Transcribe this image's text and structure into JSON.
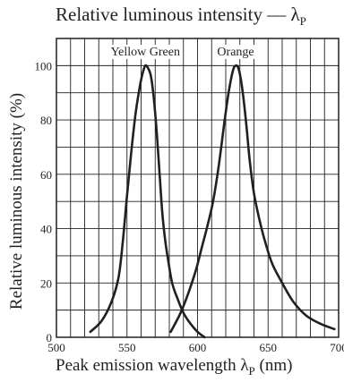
{
  "chart_data": {
    "type": "line",
    "title": "Relative luminous intensity — λP",
    "title_symbol": "λP",
    "xlabel": "Peak emission wavelength λP (nm)",
    "ylabel": "Relative luminous intensity (%)",
    "xlim": [
      500,
      700
    ],
    "ylim": [
      0,
      110
    ],
    "x_ticks": [
      500,
      550,
      600,
      650,
      700
    ],
    "y_ticks": [
      0,
      20,
      40,
      60,
      80,
      100
    ],
    "grid": true,
    "series": [
      {
        "name": "Yellow Green",
        "x": [
          524,
          532,
          539,
          544,
          547,
          550,
          553,
          556,
          559,
          561,
          563,
          565,
          567,
          569,
          571,
          573,
          575,
          577,
          579,
          582,
          586,
          590,
          595,
          600,
          605
        ],
        "y": [
          2,
          6,
          13,
          22,
          35,
          52,
          68,
          82,
          92,
          97,
          100,
          99,
          96,
          88,
          76,
          61,
          46,
          36,
          29,
          20,
          14,
          9,
          5,
          2,
          0
        ],
        "color": "#231f20"
      },
      {
        "name": "Orange",
        "x": [
          581,
          588,
          594,
          599,
          603,
          607,
          611,
          615,
          619,
          622,
          625,
          627,
          629,
          631,
          633,
          635,
          637,
          640,
          644,
          648,
          653,
          660,
          668,
          677,
          687,
          697
        ],
        "y": [
          2,
          9,
          17,
          25,
          33,
          41,
          50,
          63,
          79,
          90,
          98,
          100,
          99,
          94,
          86,
          76,
          65,
          53,
          43,
          35,
          27,
          20,
          13,
          8,
          5,
          3
        ],
        "color": "#231f20"
      }
    ]
  }
}
